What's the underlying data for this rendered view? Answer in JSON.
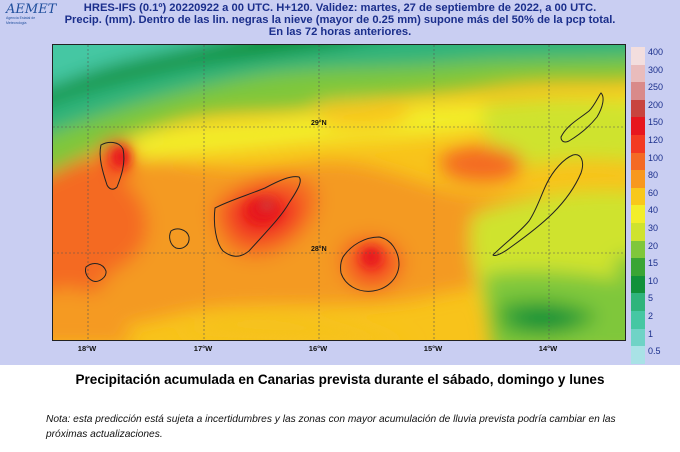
{
  "logo": {
    "name": "AEMET",
    "tagline": "Agencia Estatal de Meteorología"
  },
  "header": {
    "line1": "HRES-IFS (0.1º) 20220922 a 00 UTC.  H+120. Validez: martes, 27 de septiembre de 2022,  a  00 UTC.",
    "line2": "Precip. (mm). Dentro de las lin. negras la nieve (mayor de 0.25 mm) supone más del 50% de la pcp total.",
    "line3": "En las 72 horas anteriores."
  },
  "map": {
    "lat_labels": [
      "29°N",
      "28°N"
    ],
    "lon_labels": [
      "18°W",
      "17°W",
      "16°W",
      "15°W",
      "14°W"
    ],
    "islands": [
      "La Palma",
      "El Hierro",
      "La Gomera",
      "Tenerife",
      "Gran Canaria",
      "Fuerteventura",
      "Lanzarote"
    ]
  },
  "legend": {
    "unit": "mm",
    "levels": [
      "400",
      "300",
      "250",
      "200",
      "150",
      "120",
      "100",
      "80",
      "60",
      "40",
      "30",
      "20",
      "15",
      "10",
      "5",
      "2",
      "1",
      "0.5"
    ],
    "colors": [
      "#f3dede",
      "#e9bcbc",
      "#d98a8a",
      "#c8443f",
      "#e7161f",
      "#f33a22",
      "#f46a24",
      "#f8981e",
      "#f8c81b",
      "#f2ee2a",
      "#cfe32e",
      "#7fc73b",
      "#3aa534",
      "#11913a",
      "#2fb47c",
      "#45c7a3",
      "#6fd3c6",
      "#a9e2e6"
    ]
  },
  "caption": "Precipitación  acumulada en Canarias prevista durante el sábado, domingo y lunes",
  "note": "Nota: esta predicción está sujeta a incertidumbres y las zonas con mayor acumulación de lluvia prevista podría cambiar en las próximas actualizaciones."
}
